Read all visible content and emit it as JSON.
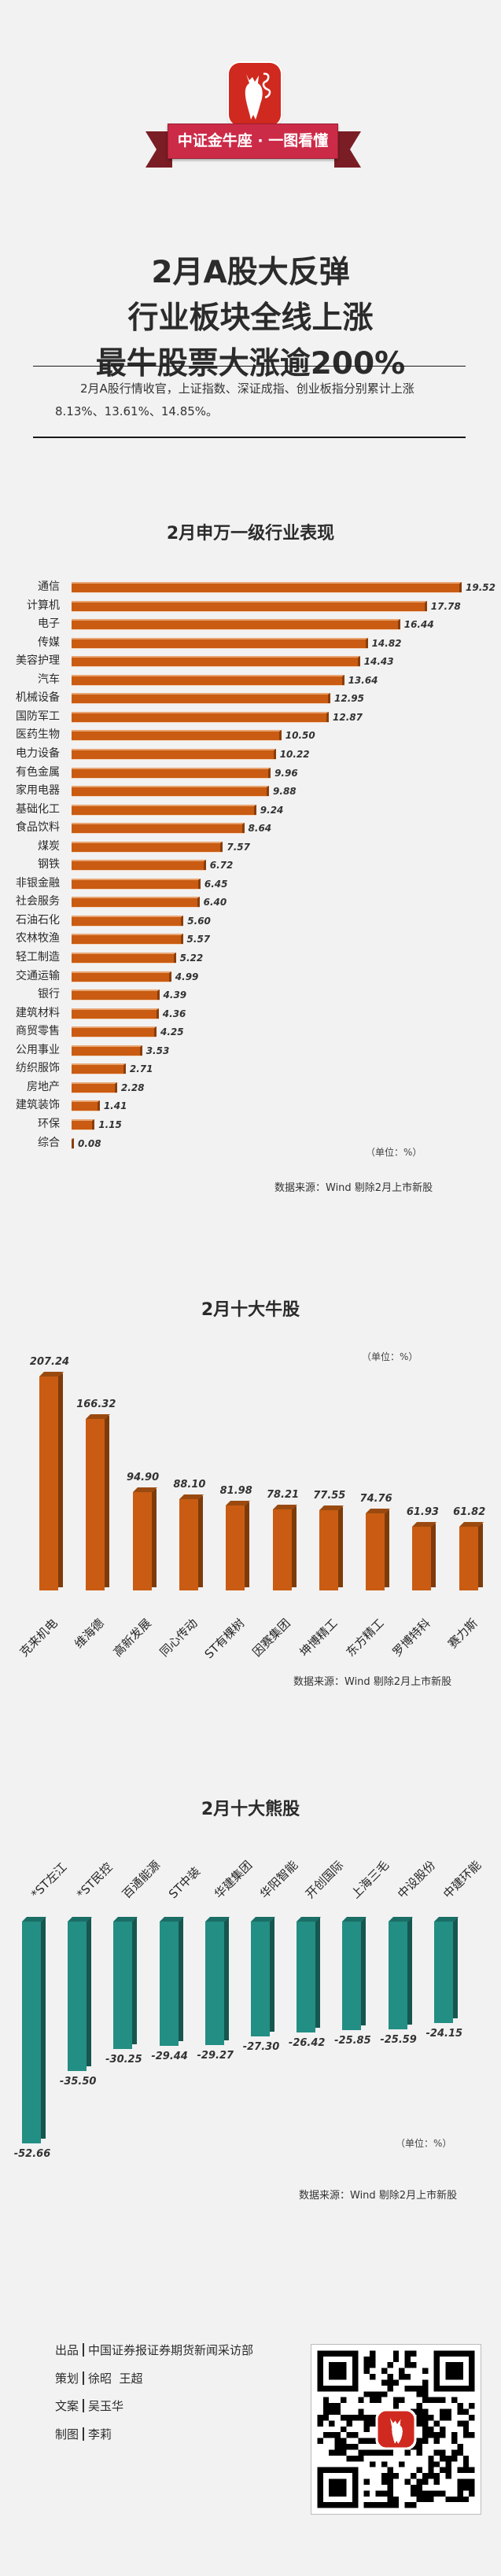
{
  "header": {
    "brand_ribbon": "中证金牛座 · 一图看懂",
    "logo_icon": "bull-logo-icon",
    "title_lines": [
      "2月A股大反弹",
      "行业板块全线上涨",
      "最牛股票大涨逾200%"
    ],
    "intro": "2月A股行情收官，上证指数、深证成指、创业板指分别累计上涨8.13%、13.61%、14.85%。"
  },
  "colors": {
    "bull_bar": "#c95c12",
    "bear_bar": "#238e84",
    "brand_red": "#d0291f",
    "ribbon": "#cc2b48",
    "background": "#f2f2f2"
  },
  "industry_chart": {
    "title": "2月申万一级行业表现",
    "unit": "（单位：%）",
    "source": "数据来源：Wind 剔除2月上市新股"
  },
  "bull_chart": {
    "title": "2月十大牛股",
    "unit": "（单位：%）",
    "source": "数据来源：Wind 剔除2月上市新股"
  },
  "bear_chart": {
    "title": "2月十大熊股",
    "unit": "（单位：%）",
    "source": "数据来源：Wind 剔除2月上市新股"
  },
  "chart_data": [
    {
      "type": "bar",
      "orientation": "horizontal",
      "title": "2月申万一级行业表现",
      "xlabel": "",
      "ylabel": "",
      "unit": "%",
      "categories": [
        "通信",
        "计算机",
        "电子",
        "传媒",
        "美容护理",
        "汽车",
        "机械设备",
        "国防军工",
        "医药生物",
        "电力设备",
        "有色金属",
        "家用电器",
        "基础化工",
        "食品饮料",
        "煤炭",
        "钢铁",
        "非银金融",
        "社会服务",
        "石油石化",
        "农林牧渔",
        "轻工制造",
        "交通运输",
        "银行",
        "建筑材料",
        "商贸零售",
        "公用事业",
        "纺织服饰",
        "房地产",
        "建筑装饰",
        "环保",
        "综合"
      ],
      "values": [
        19.52,
        17.78,
        16.44,
        14.82,
        14.43,
        13.64,
        12.95,
        12.87,
        10.5,
        10.22,
        9.96,
        9.88,
        9.24,
        8.64,
        7.57,
        6.72,
        6.45,
        6.4,
        5.6,
        5.57,
        5.22,
        4.99,
        4.39,
        4.36,
        4.25,
        3.53,
        2.71,
        2.28,
        1.41,
        1.15,
        0.08
      ],
      "labels": [
        "19.52",
        "17.78",
        "16.44",
        "14.82",
        "14.43",
        "13.64",
        "12.95",
        "12.87",
        "10.50",
        "10.22",
        "9.96",
        "9.88",
        "9.24",
        "8.64",
        "7.57",
        "6.72",
        "6.45",
        "6.40",
        "5.60",
        "5.57",
        "5.22",
        "4.99",
        "4.39",
        "4.36",
        "4.25",
        "3.53",
        "2.71",
        "2.28",
        "1.41",
        "1.15",
        "0.08"
      ],
      "grid": false,
      "legend": "none",
      "source": "数据来源：Wind 剔除2月上市新股"
    },
    {
      "type": "bar",
      "orientation": "vertical",
      "title": "2月十大牛股",
      "unit": "%",
      "categories": [
        "克来机电",
        "维海德",
        "高新发展",
        "同心传动",
        "ST有棵树",
        "因赛集团",
        "坤博精工",
        "东方精工",
        "罗博特科",
        "赛力斯"
      ],
      "values": [
        207.24,
        166.32,
        94.9,
        88.1,
        81.98,
        78.21,
        77.55,
        74.76,
        61.93,
        61.82
      ],
      "labels": [
        "207.24",
        "166.32",
        "94.90",
        "88.10",
        "81.98",
        "78.21",
        "77.55",
        "74.76",
        "61.93",
        "61.82"
      ],
      "grid": false,
      "legend": "none",
      "source": "数据来源：Wind 剔除2月上市新股"
    },
    {
      "type": "bar",
      "orientation": "vertical",
      "title": "2月十大熊股",
      "unit": "%",
      "categories": [
        "*ST左江",
        "*ST民控",
        "百通能源",
        "ST中装",
        "华建集团",
        "华阳智能",
        "开创国际",
        "上海三毛",
        "中设股份",
        "中建环能"
      ],
      "values": [
        -52.66,
        -35.5,
        -30.25,
        -29.44,
        -29.27,
        -27.3,
        -26.42,
        -25.85,
        -25.59,
        -24.15
      ],
      "labels": [
        "-52.66",
        "-35.50",
        "-30.25",
        "-29.44",
        "-29.27",
        "-27.30",
        "-26.42",
        "-25.85",
        "-25.59",
        "-24.15"
      ],
      "grid": false,
      "legend": "none",
      "source": "数据来源：Wind 剔除2月上市新股"
    }
  ],
  "footer": {
    "credits": [
      {
        "role": "出品",
        "name": "中国证券报证券期货新闻采访部"
      },
      {
        "role": "策划",
        "name": "徐昭  王超"
      },
      {
        "role": "文案",
        "name": "吴玉华"
      },
      {
        "role": "制图",
        "name": "李莉"
      }
    ],
    "qr_icon": "qr-code-icon"
  }
}
